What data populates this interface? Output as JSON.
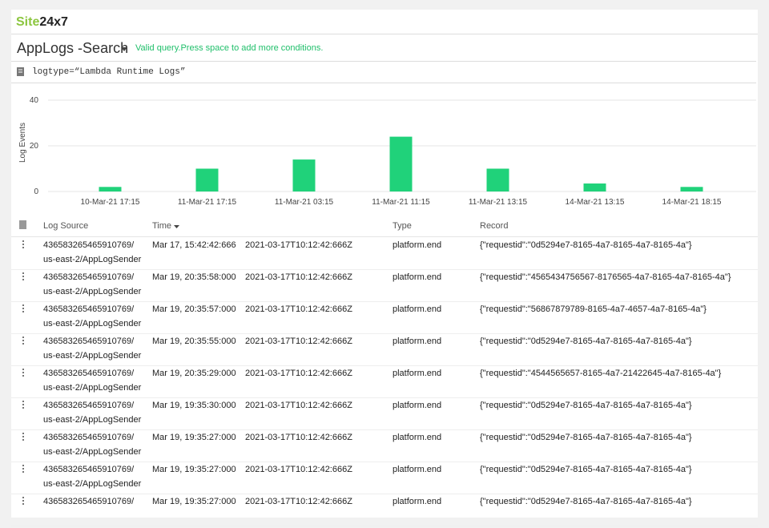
{
  "header": {
    "logo_site": "Site",
    "logo_rest": "24x7"
  },
  "search": {
    "title": "AppLogs -Search",
    "status": "Valid query.Press space to add more conditions.",
    "query": "logtype=“Lambda Runtime Logs”"
  },
  "chart_data": {
    "type": "bar",
    "y_label": "Log Events",
    "categories": [
      "10-Mar-21 17:15",
      "11-Mar-21 17:15",
      "11-Mar-21 03:15",
      "11-Mar-21 11:15",
      "11-Mar-21 13:15",
      "14-Mar-21 13:15",
      "14-Mar-21 18:15"
    ],
    "values": [
      2,
      10,
      14,
      24,
      10,
      3.5,
      2
    ],
    "color": "#20d27a",
    "ylim": [
      0,
      40
    ],
    "yticks": [
      0,
      20,
      40
    ],
    "grid": true
  },
  "table": {
    "columns": [
      "Log Source",
      "Time",
      "Type",
      "Record"
    ],
    "rows": [
      {
        "source": "436583265465910769/",
        "source_name": "us-east-2/AppLogSender",
        "time": "Mar 17, 15:42:42:666",
        "timestamp": "2021-03-17T10:12:42:666Z",
        "type": "platform.end",
        "record": "{\"requestid\":\"0d5294e7-8165-4a7-8165-4a7-8165-4a\"}"
      },
      {
        "source": "436583265465910769/",
        "source_name": "us-east-2/AppLogSender",
        "time": "Mar 19, 20:35:58:000",
        "timestamp": "2021-03-17T10:12:42:666Z",
        "type": "platform.end",
        "record": "{\"requestid\":\"4565434756567-8176565-4a7-8165-4a7-8165-4a\"}"
      },
      {
        "source": "436583265465910769/",
        "source_name": "us-east-2/AppLogSender",
        "time": "Mar 19, 20:35:57:000",
        "timestamp": "2021-03-17T10:12:42:666Z",
        "type": "platform.end",
        "record": "{\"requestid\":\"56867879789-8165-4a7-4657-4a7-8165-4a\"}"
      },
      {
        "source": "436583265465910769/",
        "source_name": "us-east-2/AppLogSender",
        "time": "Mar 19, 20:35:55:000",
        "timestamp": "2021-03-17T10:12:42:666Z",
        "type": "platform.end",
        "record": "{\"requestid\":\"0d5294e7-8165-4a7-8165-4a7-8165-4a\"}"
      },
      {
        "source": "436583265465910769/",
        "source_name": "us-east-2/AppLogSender",
        "time": "Mar 19, 20:35:29:000",
        "timestamp": "2021-03-17T10:12:42:666Z",
        "type": "platform.end",
        "record": "{\"requestid\":\"4544565657-8165-4a7-21422645-4a7-8165-4a\"}"
      },
      {
        "source": "436583265465910769/",
        "source_name": "us-east-2/AppLogSender",
        "time": "Mar 19, 19:35:30:000",
        "timestamp": "2021-03-17T10:12:42:666Z",
        "type": "platform.end",
        "record": "{\"requestid\":\"0d5294e7-8165-4a7-8165-4a7-8165-4a\"}"
      },
      {
        "source": "436583265465910769/",
        "source_name": "us-east-2/AppLogSender",
        "time": "Mar 19, 19:35:27:000",
        "timestamp": "2021-03-17T10:12:42:666Z",
        "type": "platform.end",
        "record": "{\"requestid\":\"0d5294e7-8165-4a7-8165-4a7-8165-4a\"}"
      },
      {
        "source": "436583265465910769/",
        "source_name": "us-east-2/AppLogSender",
        "time": "Mar 19, 19:35:27:000",
        "timestamp": "2021-03-17T10:12:42:666Z",
        "type": "platform.end",
        "record": "{\"requestid\":\"0d5294e7-8165-4a7-8165-4a7-8165-4a\"}"
      },
      {
        "source": "436583265465910769/",
        "time": "Mar 19, 19:35:27:000",
        "timestamp": "2021-03-17T10:12:42:666Z",
        "type": "platform.end",
        "record": "{\"requestid\":\"0d5294e7-8165-4a7-8165-4a7-8165-4a\"}"
      }
    ]
  }
}
